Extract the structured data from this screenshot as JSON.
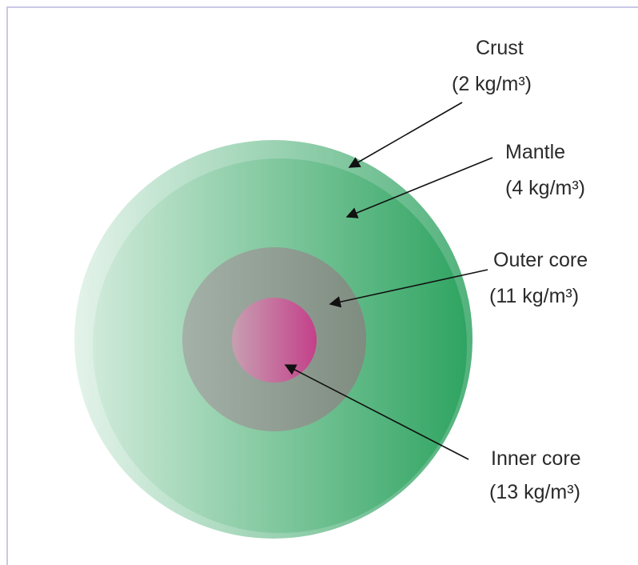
{
  "layers": [
    {
      "name": "Crust",
      "density": "(2 kg/m³)"
    },
    {
      "name": "Mantle",
      "density": "(4 kg/m³)"
    },
    {
      "name": "Outer core",
      "density": "(11 kg/m³)"
    },
    {
      "name": "Inner core",
      "density": "(13 kg/m³)"
    }
  ]
}
